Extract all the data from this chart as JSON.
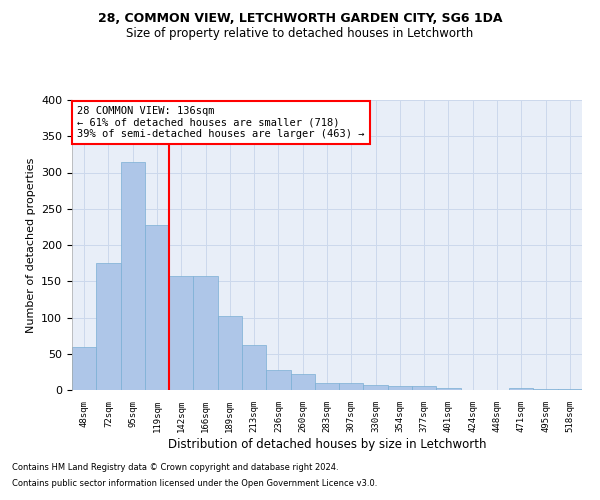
{
  "title1": "28, COMMON VIEW, LETCHWORTH GARDEN CITY, SG6 1DA",
  "title2": "Size of property relative to detached houses in Letchworth",
  "xlabel": "Distribution of detached houses by size in Letchworth",
  "ylabel": "Number of detached properties",
  "categories": [
    "48sqm",
    "72sqm",
    "95sqm",
    "119sqm",
    "142sqm",
    "166sqm",
    "189sqm",
    "213sqm",
    "236sqm",
    "260sqm",
    "283sqm",
    "307sqm",
    "330sqm",
    "354sqm",
    "377sqm",
    "401sqm",
    "424sqm",
    "448sqm",
    "471sqm",
    "495sqm",
    "518sqm"
  ],
  "values": [
    60,
    175,
    315,
    228,
    157,
    157,
    102,
    62,
    27,
    22,
    10,
    10,
    7,
    5,
    5,
    3,
    0,
    0,
    3,
    2,
    2
  ],
  "bar_color": "#aec6e8",
  "bar_edge_color": "#7aafd4",
  "grid_color": "#ccd8ec",
  "background_color": "#e8eef8",
  "red_line_x": 3.5,
  "annotation_text": "28 COMMON VIEW: 136sqm\n← 61% of detached houses are smaller (718)\n39% of semi-detached houses are larger (463) →",
  "annotation_box_color": "white",
  "annotation_box_edge": "red",
  "footer1": "Contains HM Land Registry data © Crown copyright and database right 2024.",
  "footer2": "Contains public sector information licensed under the Open Government Licence v3.0.",
  "ylim": [
    0,
    400
  ],
  "yticks": [
    0,
    50,
    100,
    150,
    200,
    250,
    300,
    350,
    400
  ]
}
